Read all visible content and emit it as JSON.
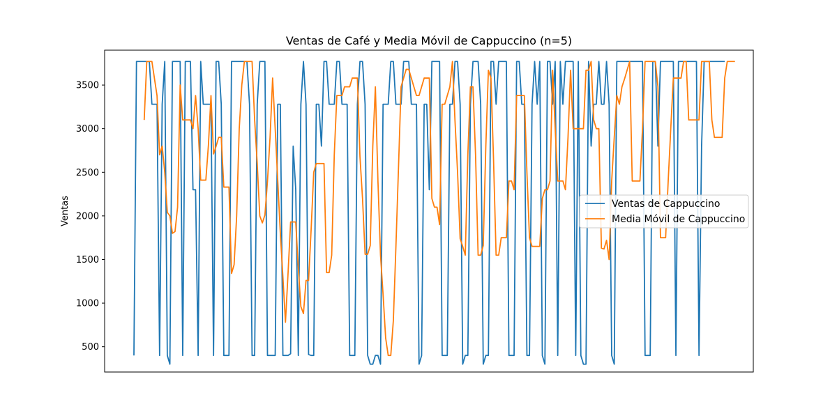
{
  "chart_data": {
    "type": "line",
    "title": "Ventas de Café y Media Móvil de Cappuccino (n=5)",
    "xlabel": "",
    "ylabel": "Ventas",
    "ylim": [
      210,
      3900
    ],
    "yticks": [
      500,
      1000,
      1500,
      2000,
      2500,
      3000,
      3500
    ],
    "grid": false,
    "legend_position": "center-right",
    "series": [
      {
        "name": "Ventas de Cappuccino",
        "color": "#1f77b4",
        "values": [
          400,
          3770,
          3770,
          3770,
          3770,
          3770,
          3770,
          3280,
          3280,
          3280,
          400,
          3280,
          3770,
          400,
          300,
          3770,
          3770,
          3770,
          3770,
          400,
          3770,
          3770,
          3770,
          2300,
          2300,
          400,
          3770,
          3280,
          3280,
          3280,
          3280,
          400,
          3770,
          3770,
          3280,
          400,
          400,
          400,
          3770,
          3770,
          3770,
          3770,
          3770,
          3770,
          3770,
          3280,
          400,
          400,
          3280,
          3770,
          3770,
          3770,
          400,
          400,
          400,
          400,
          3280,
          3280,
          400,
          400,
          400,
          420,
          2800,
          2300,
          400,
          3280,
          3770,
          3280,
          410,
          400,
          400,
          3280,
          3280,
          2800,
          3770,
          3770,
          3280,
          3280,
          3280,
          3770,
          3770,
          3280,
          3280,
          3280,
          400,
          400,
          400,
          3280,
          3770,
          3770,
          3280,
          400,
          300,
          300,
          400,
          400,
          300,
          3280,
          3280,
          3280,
          3770,
          3770,
          3280,
          3280,
          3280,
          3770,
          3770,
          3770,
          3280,
          3280,
          3280,
          300,
          400,
          3280,
          3280,
          2300,
          3770,
          3770,
          3770,
          3770,
          400,
          400,
          400,
          3280,
          3280,
          3770,
          3770,
          3280,
          300,
          400,
          400,
          3280,
          3770,
          3770,
          3770,
          3280,
          300,
          400,
          400,
          3770,
          3770,
          3280,
          3770,
          3770,
          3770,
          3770,
          400,
          400,
          400,
          3770,
          3770,
          3280,
          3280,
          400,
          400,
          3280,
          3770,
          3280,
          3770,
          400,
          300,
          3770,
          3770,
          3280,
          3770,
          400,
          3770,
          3280,
          3770,
          3770,
          3770,
          3770,
          400,
          3770,
          400,
          300,
          300,
          3770,
          2800,
          3280,
          3280,
          3770,
          3280,
          3280,
          3770,
          3280,
          400,
          300,
          3770,
          3770,
          3770,
          3770,
          3770,
          3770,
          3770,
          3770,
          3770,
          3770,
          3770,
          400,
          400,
          400,
          3770,
          3770,
          2800,
          3770,
          3770,
          3770,
          3770,
          3770,
          3770,
          400,
          3770,
          3770,
          3770,
          3770,
          3770,
          3770,
          3770,
          3770,
          400,
          2800,
          3770,
          3770,
          3770,
          3770,
          3770,
          3770,
          3770,
          3770,
          3770
        ]
      },
      {
        "name": "Media Móvil de Cappuccino",
        "color": "#ff7f0e",
        "values": [
          null,
          null,
          null,
          null,
          3100,
          3770,
          3770,
          3770,
          3574,
          3378,
          2700,
          2800,
          2500,
          2040,
          2000,
          1800,
          1820,
          2100,
          3500,
          3100,
          3100,
          3100,
          3100,
          3000,
          3380,
          3000,
          2410,
          2410,
          2410,
          2810,
          3380,
          2710,
          2800,
          2900,
          2900,
          2330,
          2330,
          2330,
          1340,
          1440,
          2000,
          3000,
          3500,
          3770,
          3770,
          3770,
          3770,
          3100,
          2600,
          2000,
          1920,
          2010,
          2400,
          2900,
          3580,
          3000,
          2400,
          1800,
          1300,
          780,
          1340,
          1930,
          1930,
          1930,
          1400,
          960,
          880,
          1260,
          1260,
          1850,
          2500,
          2600,
          2600,
          2600,
          2600,
          1350,
          1350,
          1550,
          2700,
          3380,
          3380,
          3380,
          3480,
          3480,
          3480,
          3580,
          3580,
          3580,
          2680,
          2200,
          1560,
          1560,
          1660,
          2800,
          3480,
          2400,
          1550,
          1100,
          600,
          400,
          400,
          800,
          1650,
          2550,
          3480,
          3580,
          3680,
          3680,
          3580,
          3480,
          3380,
          3380,
          3480,
          3580,
          3580,
          3580,
          2200,
          2100,
          2100,
          1900,
          3280,
          3280,
          3380,
          3480,
          3770,
          3090,
          2500,
          1740,
          1650,
          1550,
          2700,
          3480,
          3480,
          2700,
          1550,
          1550,
          1660,
          2800,
          3670,
          3580,
          2650,
          1550,
          1550,
          1750,
          1750,
          1750,
          2400,
          2400,
          2300,
          3380,
          3380,
          3380,
          3380,
          2500,
          1750,
          1650,
          1650,
          1650,
          1650,
          2200,
          2300,
          2300,
          2400,
          3670,
          3000,
          2400,
          2400,
          2400,
          2300,
          2900,
          3670,
          3000,
          3000,
          3000,
          3000,
          3000,
          3670,
          3670,
          3770,
          3100,
          3000,
          3000,
          1630,
          1620,
          1720,
          1500,
          2400,
          2900,
          3380,
          3280,
          3480,
          3570,
          3670,
          3770,
          2400,
          2400,
          2400,
          2400,
          3000,
          3770,
          3770,
          3770,
          3770,
          3770,
          3480,
          1750,
          1750,
          1750,
          2400,
          3000,
          3580,
          3580,
          3580,
          3580,
          3770,
          3770,
          3100,
          3100,
          3100,
          3100,
          3100,
          3770,
          3770,
          3770,
          3770,
          3100,
          2900,
          2900,
          2900,
          2900,
          3580,
          3770,
          3770,
          3770,
          3770
        ]
      }
    ]
  }
}
